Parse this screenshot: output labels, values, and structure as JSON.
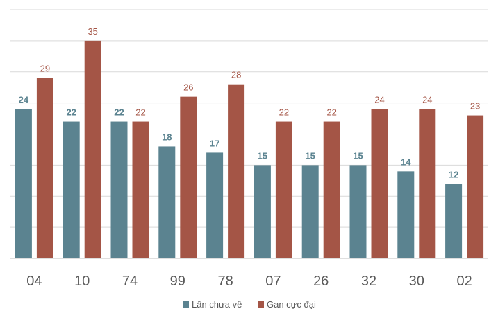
{
  "chart_data": {
    "type": "bar",
    "categories": [
      "04",
      "10",
      "74",
      "99",
      "78",
      "07",
      "26",
      "32",
      "30",
      "02"
    ],
    "series": [
      {
        "name": "Lần chưa về",
        "values": [
          24,
          22,
          22,
          18,
          17,
          15,
          15,
          15,
          14,
          12
        ],
        "color": "#5b8390"
      },
      {
        "name": "Gan cực đại",
        "values": [
          29,
          35,
          22,
          26,
          28,
          22,
          22,
          24,
          24,
          23
        ],
        "color": "#a45546"
      }
    ],
    "ylim": [
      0,
      40
    ],
    "grid": true,
    "legend_position": "bottom"
  }
}
